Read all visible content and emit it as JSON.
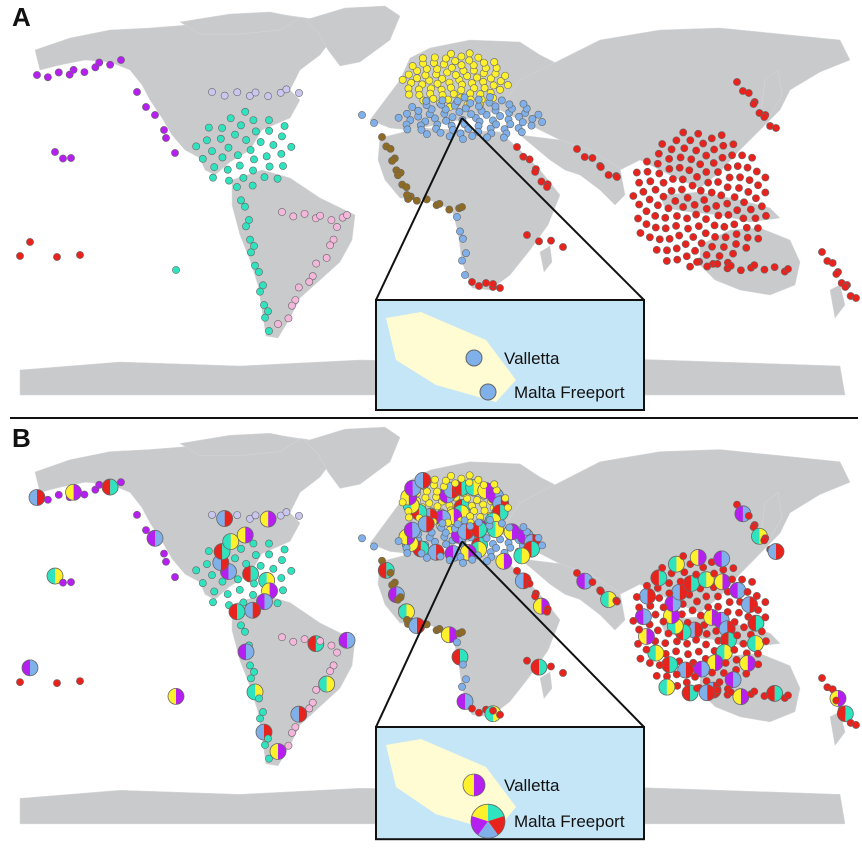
{
  "panels": [
    {
      "letter": "A",
      "mode": "single",
      "inset": {
        "port1": "Valletta",
        "port2": "Malta Freeport"
      }
    },
    {
      "letter": "B",
      "mode": "pie",
      "inset": {
        "port1": "Valletta",
        "port2": "Malta Freeport"
      }
    }
  ],
  "colors": {
    "land": "#c9cacc",
    "ocean": "#ffffff",
    "inset_sea": "#c5e6f7",
    "inset_land": "#fffbd2",
    "red": "#e8231e",
    "yellow": "#fef02a",
    "blue": "#7fb0ea",
    "teal": "#2fe3bf",
    "purple": "#b51ff0",
    "pink": "#f2b7da",
    "lavender": "#c9c6ef",
    "brown": "#8f6a23",
    "stroke": "#666666"
  },
  "legend_icons": [
    "map-marker-icon",
    "pie-marker-icon"
  ]
}
